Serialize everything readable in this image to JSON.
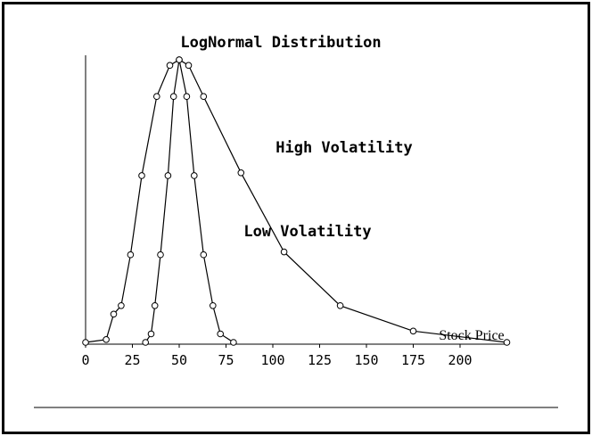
{
  "chart_data": {
    "type": "line",
    "title": "LogNormal Distribution",
    "xlabel": "Stock Price",
    "ylabel": "",
    "xlim": [
      0,
      225
    ],
    "ylim": [
      0,
      1
    ],
    "x_ticks": [
      0,
      25,
      50,
      75,
      100,
      125,
      150,
      175,
      200
    ],
    "y_ticks": [],
    "grid": false,
    "legend": "none",
    "series": [
      {
        "name": "High Volatility",
        "x": [
          0,
          11,
          15,
          19,
          24,
          30,
          38,
          45,
          50,
          55,
          63,
          83,
          106,
          136,
          175,
          225
        ],
        "y": [
          0.0,
          0.01,
          0.1,
          0.13,
          0.31,
          0.59,
          0.87,
          0.98,
          1.0,
          0.98,
          0.87,
          0.6,
          0.32,
          0.13,
          0.04,
          0.0
        ]
      },
      {
        "name": "Low Volatility",
        "x": [
          32,
          35,
          37,
          40,
          44,
          47,
          50,
          54,
          58,
          63,
          68,
          72,
          79
        ],
        "y": [
          0.0,
          0.03,
          0.13,
          0.31,
          0.59,
          0.87,
          1.0,
          0.87,
          0.59,
          0.31,
          0.13,
          0.03,
          0.0
        ]
      }
    ],
    "annotations": [
      "High Volatility",
      "Low Volatility"
    ],
    "colors": {
      "line": "#000000",
      "background": "#ffffff"
    }
  }
}
